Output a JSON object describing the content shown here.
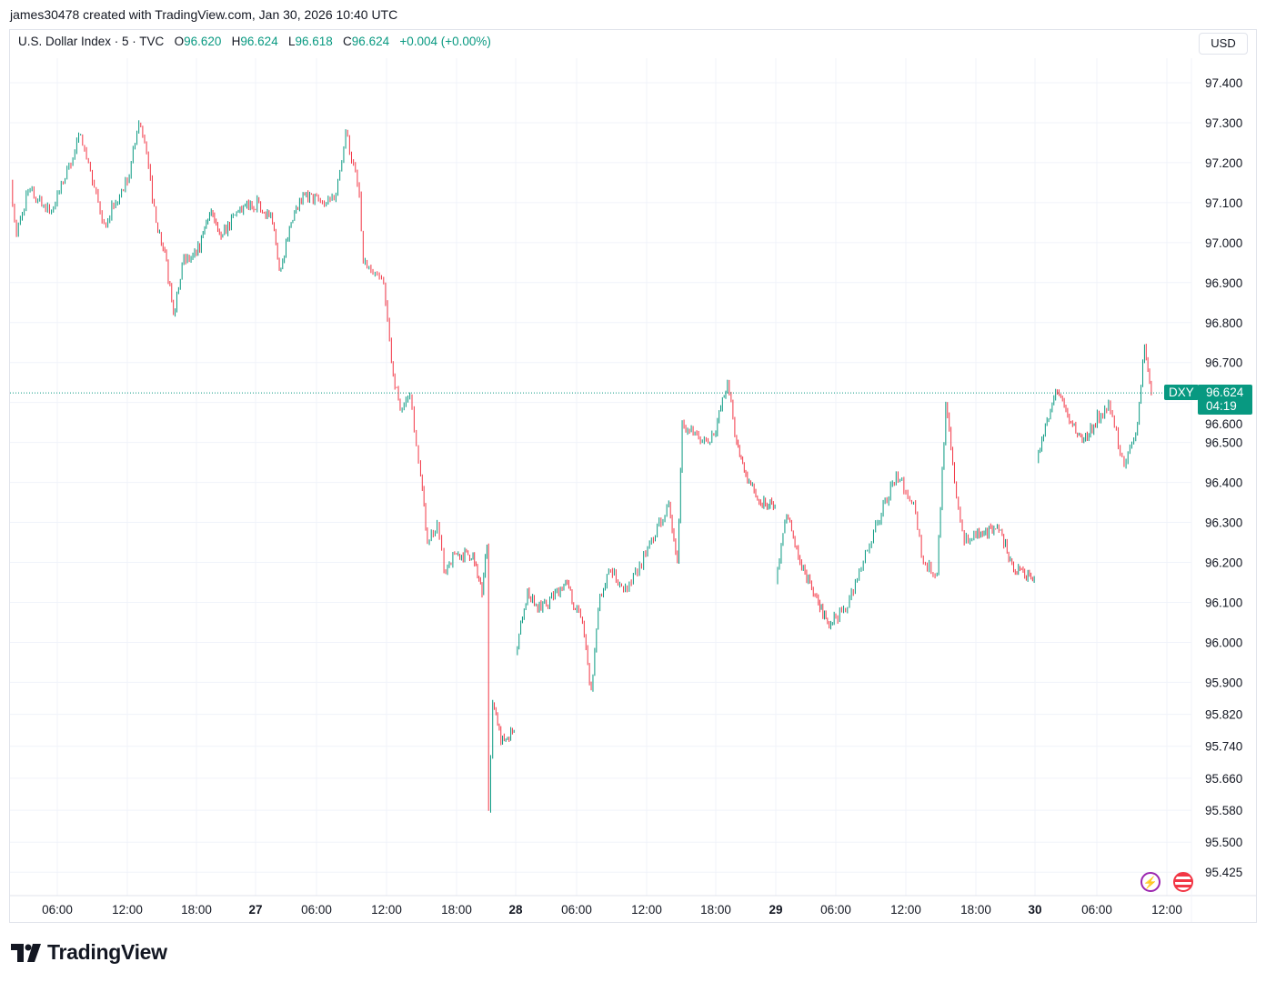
{
  "caption": "james30478 created with TradingView.com, Jan 30, 2026 10:40 UTC",
  "legend": {
    "symbol": "U.S. Dollar Index · 5 · TVC",
    "o_label": "O",
    "o": "96.620",
    "h_label": "H",
    "h": "96.624",
    "l_label": "L",
    "l": "96.618",
    "c_label": "C",
    "c": "96.624",
    "change": "+0.004 (+0.00%)"
  },
  "currency": "USD",
  "last_price": {
    "ticker": "DXY",
    "price": "96.624",
    "countdown": "04:19"
  },
  "logo": "TradingView",
  "icons": [
    "lightning-icon",
    "us-flag-icon"
  ],
  "colors": {
    "up": "#089981",
    "down": "#f23645",
    "grid": "#f0f3fa"
  },
  "chart_data": {
    "type": "candlestick",
    "title": "U.S. Dollar Index · 5 · TVC",
    "ylim": [
      95.42,
      97.48
    ],
    "y_ticks": [
      "97.400",
      "97.300",
      "97.200",
      "97.100",
      "97.000",
      "96.900",
      "96.800",
      "96.700",
      "96.600",
      "96.500",
      "96.400",
      "96.300",
      "96.200",
      "96.100",
      "96.000",
      "95.900",
      "95.820",
      "95.740",
      "95.660",
      "95.580",
      "95.500",
      "95.425"
    ],
    "x_ticks": [
      {
        "label": "06:00",
        "t": "26 06:00"
      },
      {
        "label": "12:00",
        "t": "26 12:00"
      },
      {
        "label": "18:00",
        "t": "26 18:00"
      },
      {
        "label": "27",
        "t": "27 00:00",
        "day": true
      },
      {
        "label": "06:00",
        "t": "27 06:00"
      },
      {
        "label": "12:00",
        "t": "27 12:00"
      },
      {
        "label": "18:00",
        "t": "27 18:00"
      },
      {
        "label": "28",
        "t": "28 00:00",
        "day": true
      },
      {
        "label": "06:00",
        "t": "28 06:00"
      },
      {
        "label": "12:00",
        "t": "28 12:00"
      },
      {
        "label": "18:00",
        "t": "28 18:00"
      },
      {
        "label": "29",
        "t": "29 00:00",
        "day": true
      },
      {
        "label": "06:00",
        "t": "29 06:00"
      },
      {
        "label": "12:00",
        "t": "29 12:00"
      },
      {
        "label": "18:00",
        "t": "29 18:00"
      },
      {
        "label": "30",
        "t": "30 00:00",
        "day": true
      },
      {
        "label": "06:00",
        "t": "30 06:00"
      },
      {
        "label": "12:00",
        "t": "30 12:00"
      }
    ],
    "grid": true,
    "segments": [
      [
        [
          "26 02:00",
          97.15
        ],
        [
          "26 02:30",
          97.02
        ],
        [
          "26 03:30",
          97.13
        ],
        [
          "26 05:30",
          97.08
        ],
        [
          "26 06:30",
          97.15
        ],
        [
          "26 08:00",
          97.27
        ],
        [
          "26 09:00",
          97.15
        ],
        [
          "26 10:00",
          97.05
        ],
        [
          "26 11:00",
          97.1
        ],
        [
          "26 12:00",
          97.15
        ],
        [
          "26 13:00",
          97.3
        ],
        [
          "26 13:30",
          97.25
        ],
        [
          "26 14:30",
          97.05
        ],
        [
          "26 15:15",
          96.98
        ],
        [
          "26 16:00",
          96.82
        ],
        [
          "26 16:45",
          96.95
        ],
        [
          "26 18:00",
          96.97
        ],
        [
          "26 19:30",
          97.08
        ],
        [
          "26 20:40",
          97.02
        ],
        [
          "26 22:15",
          97.08
        ],
        [
          "27 00:20",
          97.1
        ],
        [
          "27 01:40",
          97.05
        ],
        [
          "27 02:20",
          96.93
        ],
        [
          "27 03:30",
          97.05
        ],
        [
          "27 04:50",
          97.12
        ],
        [
          "27 06:30",
          97.1
        ],
        [
          "27 07:40",
          97.12
        ],
        [
          "27 08:30",
          97.28
        ],
        [
          "27 09:40",
          97.12
        ],
        [
          "27 10:00",
          96.95
        ],
        [
          "27 10:50",
          96.92
        ],
        [
          "27 11:45",
          96.9
        ],
        [
          "27 12:25",
          96.7
        ],
        [
          "27 13:10",
          96.58
        ],
        [
          "27 14:00",
          96.62
        ],
        [
          "27 14:55",
          96.42
        ],
        [
          "27 15:30",
          96.25
        ],
        [
          "27 16:20",
          96.3
        ],
        [
          "27 16:55",
          96.18
        ],
        [
          "27 17:50",
          96.22
        ],
        [
          "27 19:40",
          96.22
        ],
        [
          "27 20:35",
          96.12
        ],
        [
          "27 21:05",
          96.24
        ],
        [
          "27 21:15",
          95.58
        ],
        [
          "27 21:40",
          95.85
        ],
        [
          "27 22:30",
          95.75
        ],
        [
          "27 23:50",
          95.78
        ]
      ],
      [
        [
          "28 00:00",
          95.97
        ],
        [
          "28 01:10",
          96.13
        ],
        [
          "28 02:30",
          96.08
        ],
        [
          "28 04:55",
          96.15
        ],
        [
          "28 06:30",
          96.05
        ],
        [
          "28 07:15",
          95.88
        ],
        [
          "28 08:00",
          96.12
        ],
        [
          "28 08:45",
          96.18
        ],
        [
          "28 10:20",
          96.13
        ],
        [
          "28 11:55",
          96.22
        ],
        [
          "28 13:55",
          96.35
        ],
        [
          "28 14:40",
          96.2
        ],
        [
          "28 15:05",
          96.55
        ],
        [
          "28 16:40",
          96.5
        ],
        [
          "28 17:50",
          96.52
        ],
        [
          "28 19:10",
          96.65
        ],
        [
          "28 20:05",
          96.5
        ],
        [
          "28 21:00",
          96.42
        ],
        [
          "28 22:20",
          96.35
        ],
        [
          "28 23:55",
          96.34
        ]
      ],
      [
        [
          "29 00:00",
          96.15
        ],
        [
          "29 01:05",
          96.32
        ],
        [
          "29 02:25",
          96.2
        ],
        [
          "29 04:15",
          96.1
        ],
        [
          "29 05:10",
          96.05
        ],
        [
          "29 06:50",
          96.08
        ],
        [
          "29 08:00",
          96.18
        ],
        [
          "29 09:35",
          96.3
        ],
        [
          "29 11:10",
          96.42
        ],
        [
          "29 12:40",
          96.35
        ],
        [
          "29 13:30",
          96.2
        ],
        [
          "29 14:40",
          96.17
        ],
        [
          "29 15:25",
          96.6
        ],
        [
          "29 16:10",
          96.4
        ],
        [
          "29 17:00",
          96.25
        ],
        [
          "29 18:10",
          96.28
        ],
        [
          "29 20:30",
          96.28
        ],
        [
          "29 21:50",
          96.18
        ],
        [
          "29 23:55",
          96.16
        ]
      ],
      [
        [
          "30 00:10",
          96.45
        ],
        [
          "30 02:00",
          96.63
        ],
        [
          "30 03:20",
          96.55
        ],
        [
          "30 04:35",
          96.5
        ],
        [
          "30 07:00",
          96.6
        ],
        [
          "30 08:20",
          96.44
        ],
        [
          "30 09:20",
          96.52
        ],
        [
          "30 10:05",
          96.74
        ],
        [
          "30 10:40",
          96.624
        ]
      ]
    ]
  }
}
